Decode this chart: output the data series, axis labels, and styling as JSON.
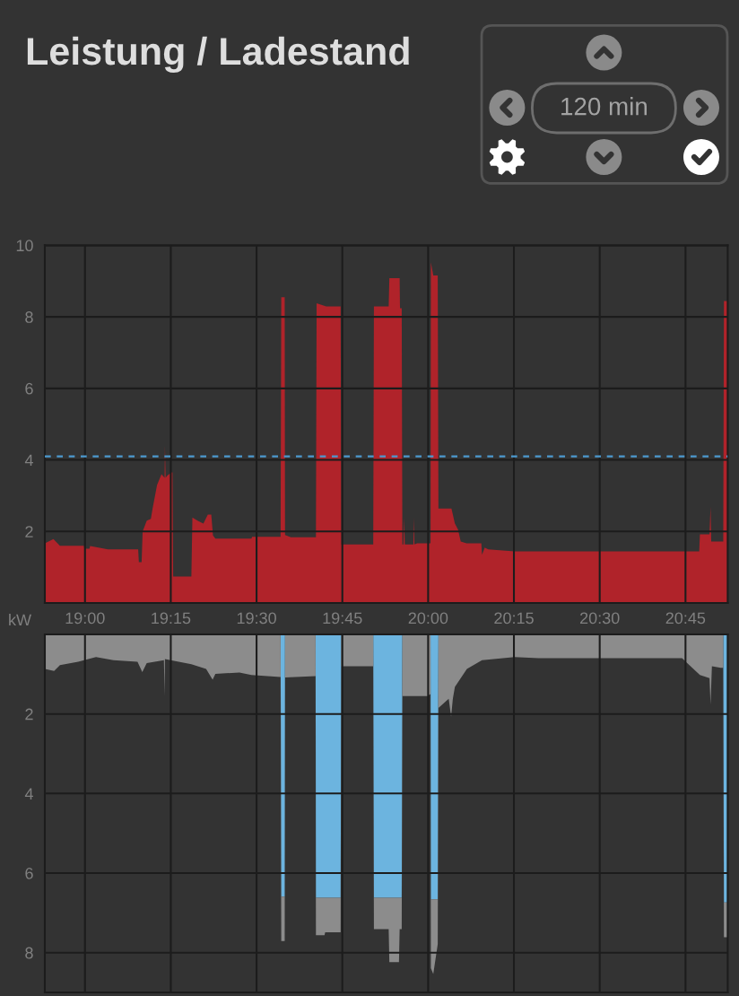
{
  "chart_data": [
    {
      "type": "area",
      "title": "Leistung / Ladestand",
      "ylabel": "kW",
      "annotations": [
        "120 min"
      ],
      "x": [
        18.883,
        18.908,
        18.927,
        18.997,
        18.998,
        19.013,
        19.015,
        19.067,
        19.155,
        19.157,
        19.165,
        19.168,
        19.18,
        19.192,
        19.197,
        19.21,
        19.223,
        19.232,
        19.233,
        19.235,
        19.24,
        19.252,
        19.255,
        19.257,
        19.31,
        19.313,
        19.328,
        19.345,
        19.358,
        19.368,
        19.373,
        19.38,
        19.485,
        19.487,
        19.57,
        19.572,
        19.582,
        19.583,
        19.6,
        19.673,
        19.675,
        19.703,
        19.745,
        19.747,
        19.84,
        19.842,
        19.885,
        19.887,
        19.917,
        19.918,
        19.923,
        19.925,
        19.928,
        19.93,
        19.932,
        19.957,
        19.958,
        19.96,
        19.968,
        20.007,
        20.008,
        20.015,
        20.028,
        20.03,
        20.068,
        20.078,
        20.087,
        20.095,
        20.112,
        20.155,
        20.157,
        20.165,
        20.175,
        20.252,
        20.79,
        20.792,
        20.82,
        20.823,
        20.825,
        20.853,
        20.86,
        20.862,
        20.873
      ],
      "series": [
        {
          "color": "#b0232a",
          "values": [
            1.67,
            1.79,
            1.6,
            1.6,
            1.52,
            1.52,
            1.59,
            1.5,
            1.5,
            1.14,
            1.14,
            2.0,
            2.3,
            2.35,
            2.64,
            3.3,
            3.6,
            3.5,
            4.4,
            3.5,
            3.56,
            3.65,
            3.65,
            0.74,
            0.74,
            2.39,
            2.3,
            2.22,
            2.47,
            2.47,
            1.89,
            1.8,
            1.8,
            1.85,
            1.85,
            8.55,
            8.55,
            1.9,
            1.84,
            1.84,
            8.38,
            8.29,
            8.29,
            1.64,
            1.64,
            8.29,
            8.29,
            9.08,
            9.08,
            8.24,
            8.24,
            1.64,
            1.64,
            2.39,
            1.64,
            1.64,
            2.39,
            1.64,
            1.67,
            1.67,
            9.53,
            9.16,
            9.16,
            2.64,
            2.64,
            2.22,
            2.06,
            1.72,
            1.67,
            1.67,
            1.35,
            1.55,
            1.5,
            1.44,
            1.44,
            1.92,
            1.92,
            2.7,
            1.72,
            1.72,
            1.72,
            8.44,
            8.44
          ]
        }
      ],
      "xlim": [
        18.883,
        20.873
      ],
      "ylim": [
        0,
        10
      ],
      "xticks": [
        {
          "value": 19,
          "label": "19:00"
        },
        {
          "value": 19.25,
          "label": "19:15"
        },
        {
          "value": 19.5,
          "label": "19:30"
        },
        {
          "value": 19.75,
          "label": "19:45"
        },
        {
          "value": 20,
          "label": "20:00"
        },
        {
          "value": 20.25,
          "label": "20:15"
        },
        {
          "value": 20.5,
          "label": "20:30"
        },
        {
          "value": 20.75,
          "label": "20:45"
        }
      ],
      "yticks": [
        2,
        4,
        6,
        8,
        10
      ],
      "ref_lines": [
        {
          "axis": "y",
          "value": 4.1,
          "color": "#4c9ad0",
          "line_style": "dashed"
        }
      ],
      "grid": true
    },
    {
      "type": "area",
      "stacked": true,
      "x": [
        18.883,
        18.91,
        18.927,
        18.98,
        19.032,
        19.083,
        19.153,
        19.167,
        19.18,
        19.23,
        19.232,
        19.233,
        19.31,
        19.353,
        19.372,
        19.38,
        19.45,
        19.485,
        19.57,
        19.572,
        19.582,
        19.583,
        19.672,
        19.673,
        19.698,
        19.7,
        19.745,
        19.747,
        19.84,
        19.842,
        19.885,
        19.887,
        19.915,
        19.917,
        19.923,
        19.925,
        19.998,
        20.007,
        20.008,
        20.015,
        20.028,
        20.03,
        20.06,
        20.067,
        20.072,
        20.078,
        20.113,
        20.157,
        20.252,
        20.322,
        20.74,
        20.792,
        20.82,
        20.823,
        20.827,
        20.853,
        20.86,
        20.862,
        20.873
      ],
      "series": [
        {
          "color": "#6cb4df",
          "values": [
            0,
            0,
            0,
            0,
            0,
            0,
            0,
            0,
            0,
            0,
            0,
            0,
            0,
            0,
            0,
            0,
            0,
            0,
            0,
            6.59,
            6.59,
            0,
            0,
            6.62,
            6.62,
            6.62,
            6.62,
            0,
            0,
            6.62,
            6.62,
            6.62,
            6.62,
            6.62,
            6.62,
            0,
            0,
            0,
            6.66,
            6.66,
            6.66,
            0,
            0,
            0,
            0,
            0,
            0,
            0,
            0,
            0,
            0,
            0,
            0,
            0,
            0,
            0,
            0,
            6.74,
            6.74
          ]
        },
        {
          "color": "#8c8c8c",
          "values": [
            0.87,
            0.92,
            0.77,
            0.69,
            0.57,
            0.65,
            0.69,
            0.95,
            0.72,
            0.65,
            1.55,
            0.62,
            0.75,
            0.87,
            1.14,
            0.99,
            0.96,
            1.02,
            1.07,
            1.12,
            1.12,
            1.08,
            1.05,
            0.94,
            0.94,
            0.87,
            0.87,
            0.8,
            0.8,
            0.79,
            0.79,
            1.62,
            1.62,
            0.79,
            0.79,
            1.55,
            1.55,
            1.5,
            1.73,
            1.88,
            1.13,
            1.85,
            1.62,
            2.07,
            1.62,
            1.32,
            0.87,
            0.65,
            0.57,
            0.6,
            0.6,
            1.02,
            1.1,
            1.77,
            0.8,
            0.84,
            0.84,
            0.87,
            0.87
          ]
        }
      ],
      "xlim": [
        18.883,
        20.873
      ],
      "ylim": [
        9,
        0
      ],
      "xticks": [
        {
          "value": 19,
          "label": null
        },
        {
          "value": 19.25,
          "label": null
        },
        {
          "value": 19.5,
          "label": null
        },
        {
          "value": 19.75,
          "label": null
        },
        {
          "value": 20,
          "label": null
        },
        {
          "value": 20.25,
          "label": null
        },
        {
          "value": 20.5,
          "label": null
        },
        {
          "value": 20.75,
          "label": null
        }
      ],
      "yticks": [
        2,
        4,
        6,
        8
      ],
      "tick_labels": "y",
      "grid": true
    }
  ]
}
